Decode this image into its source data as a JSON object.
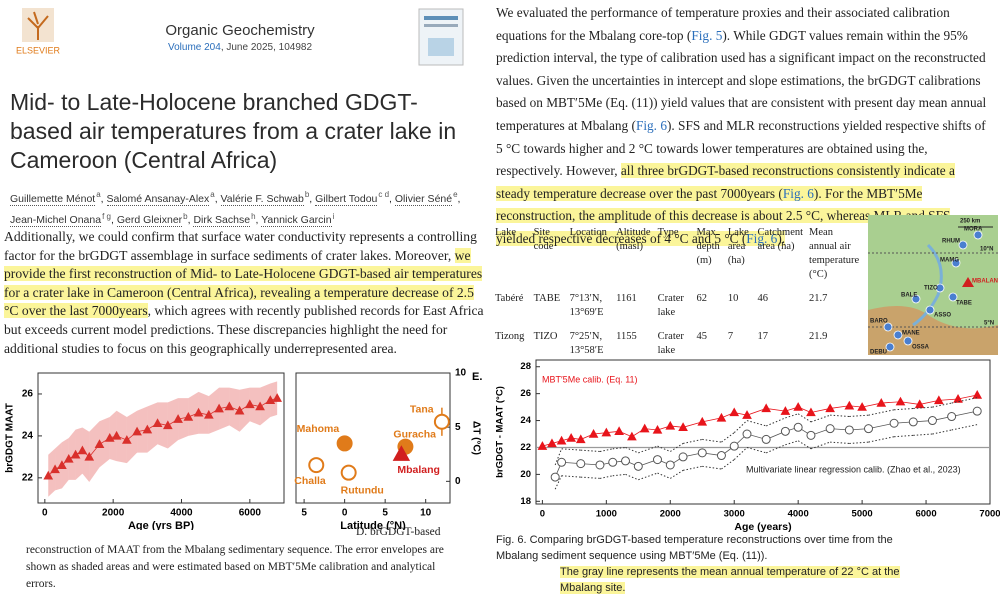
{
  "header": {
    "publisher": "ELSEVIER",
    "journal": "Organic Geochemistry",
    "volume": "Volume 204",
    "issue": ", June 2025, 104982"
  },
  "title_lines": [
    "Mid- to Late-Holocene branched GDGT-",
    "based air temperatures from a crater lake in",
    "Cameroon (Central Africa)"
  ],
  "authors": [
    {
      "name": "Guillemette Ménot",
      "aff": "a"
    },
    {
      "name": "Salomé Ansanay-Alex",
      "aff": "a"
    },
    {
      "name": "Valérie F. Schwab",
      "aff": "b"
    },
    {
      "name": "Gilbert Todou",
      "aff": "c d"
    },
    {
      "name": "Olivier Séné",
      "aff": "e"
    },
    {
      "name": "Jean-Michel Onana",
      "aff": "f g"
    },
    {
      "name": "Gerd Gleixner",
      "aff": "b"
    },
    {
      "name": "Dirk Sachse",
      "aff": "h"
    },
    {
      "name": "Yannick Garcin",
      "aff": "i"
    }
  ],
  "left_paragraph": [
    {
      "text": "Additionally, we could confirm that surface water conductivity represents a controlling factor for the brGDGT assemblage in surface sediments of crater lakes. Moreover, ",
      "style": "plain"
    },
    {
      "text": "we provide the first reconstruction of Mid- to Late-Holocene GDGT-based air temperatures for a crater lake in Cameroon (Central Africa), revealing a temperature decrease of 2.5 °C over the last 7000years",
      "style": "highlight"
    },
    {
      "text": ", which agrees with recently published records for East Africa but exceeds current model predictions. These discrepancies highlight the need for additional studies to focus on this geographically underrepresented area.",
      "style": "plain"
    }
  ],
  "left_caption": {
    "lead": "D. brGDGT-based",
    "text": "reconstruction of MAAT from the Mbalang sedimentary sequence. The error envelopes are shown as shaded areas and were estimated based on MBT′5Me calibration and analytical errors."
  },
  "right_paragraph": [
    {
      "text": "We evaluated the performance of temperature proxies and their associated calibration equations for the Mbalang core-top (",
      "style": "plain"
    },
    {
      "text": "Fig. 5",
      "style": "link"
    },
    {
      "text": "). While GDGT values remain within the 95% prediction interval, the type of calibration used has a significant impact on the reconstructed values. Given the uncertainties in intercept and slope estimations, the brGDGT calibrations based on MBT′5Me (Eq. (11)) yield values that are consistent with present day mean annual temperatures at Mbalang (",
      "style": "plain"
    },
    {
      "text": "Fig. 6",
      "style": "link"
    },
    {
      "text": "). SFS and MLR reconstructions yielded respective shifts of 5 °C towards higher and 2 °C towards lower temperatures are obtained using the, respectively. However, ",
      "style": "plain"
    },
    {
      "text": "all three brGDGT-based reconstructions consistently indicate a steady temperature decrease over the past 7000years (",
      "style": "highlight"
    },
    {
      "text": "Fig. 6",
      "style": "highlight-link"
    },
    {
      "text": "). For the MBT′5Me reconstruction, the amplitude of this decrease is about 2.5 °C, whereas MLR and SFS yielded respective decreases of 4 °C and 5 °C (",
      "style": "highlight"
    },
    {
      "text": "Fig. 6",
      "style": "highlight-link"
    },
    {
      "text": ").",
      "style": "highlight"
    }
  ],
  "table": {
    "headers": [
      "Lake",
      "Site code",
      "Location",
      "Altitude (masl)",
      "Type",
      "Max depth (m)",
      "Lake area (ha)",
      "Catchment area (ha)",
      "Mean annual air temperature (°C)"
    ],
    "rows": [
      [
        "Tabéré",
        "TABE",
        "7°13′N, 13°69′E",
        "1161",
        "Crater lake",
        "62",
        "10",
        "46",
        "21.7"
      ],
      [
        "Tizong",
        "TIZO",
        "7°25′N, 13°58′E",
        "1155",
        "Crater lake",
        "45",
        "7",
        "17",
        "21.9"
      ]
    ]
  },
  "map": {
    "labels": [
      "250 km",
      "MORA",
      "RHUM",
      "10°N",
      "MAMG",
      "MBALANG",
      "TIZO",
      "TABE",
      "BALE",
      "ASSO",
      "5°N",
      "BARO",
      "MANE",
      "DEBU",
      "OSSA"
    ]
  },
  "right_caption": {
    "text": "Fig. 6. Comparing brGDGT-based temperature reconstructions over time from the Mbalang sediment sequence using MBT′5Me (Eq. (11)).",
    "highlight": "The gray line represents the mean annual temperature of 22 °C at the Mbalang site."
  },
  "chart_data": [
    {
      "type": "scatter",
      "xlabel": "Age (yrs BP)",
      "ylabel": "brGDGT MAAT",
      "xlim": [
        -200,
        7000
      ],
      "ylim": [
        20.8,
        27
      ],
      "xticks": [
        0,
        2000,
        4000,
        6000
      ],
      "yticks": [
        22,
        24,
        26
      ],
      "series": [
        {
          "color": "#d9302c",
          "marker": "triangle",
          "fill": true,
          "line": true,
          "envelope": "shaded",
          "x": [
            100,
            300,
            500,
            700,
            900,
            1100,
            1300,
            1600,
            1900,
            2100,
            2400,
            2700,
            3000,
            3300,
            3600,
            3900,
            4200,
            4500,
            4800,
            5100,
            5400,
            5700,
            6000,
            6300,
            6600,
            6800
          ],
          "values": [
            22.1,
            22.4,
            22.6,
            22.9,
            23.1,
            23.3,
            23,
            23.6,
            23.9,
            24,
            23.8,
            24.2,
            24.3,
            24.6,
            24.5,
            24.8,
            24.9,
            25.1,
            25,
            25.3,
            25.4,
            25.2,
            25.5,
            25.4,
            25.7,
            25.8
          ],
          "errors": [
            1,
            1,
            1.1,
            1,
            1.2,
            1.1,
            1.2,
            1.1,
            1,
            1.2,
            1.1,
            1,
            1.1,
            1,
            1.1,
            1,
            0.9,
            1,
            0.9,
            1,
            0.9,
            1,
            0.8,
            0.9,
            0.8,
            0.8
          ]
        }
      ]
    },
    {
      "type": "scatter",
      "xlabel": "Latitude (°N)",
      "ylabel": "ΔT (°C)",
      "yaxis_side": "right",
      "annotation": "E.",
      "xlim": [
        -6,
        13
      ],
      "ylim": [
        -2,
        10
      ],
      "xticks": [
        {
          "value": -5,
          "label": "5"
        },
        0,
        5,
        10
      ],
      "yticks": [
        0,
        5,
        10
      ],
      "series": [
        {
          "color": "#e07b1a",
          "marker": "circle",
          "fill": true,
          "x": [
            0,
            7.5
          ],
          "values": [
            3.5,
            3.2
          ],
          "labels": [
            "Mahoma",
            "Guracha"
          ]
        },
        {
          "color": "#e07b1a",
          "marker": "circle",
          "fill": false,
          "x": [
            -3.5,
            0.5,
            12
          ],
          "values": [
            1.5,
            0.8,
            5.5
          ],
          "errors": [
            null,
            null,
            1.3
          ],
          "labels": [
            "Challa",
            "Rutundu",
            "Tana"
          ]
        },
        {
          "color": "#d11f1f",
          "marker": "triangle",
          "fill": true,
          "x": [
            7
          ],
          "values": [
            2.5
          ],
          "labels": [
            "Mbalang"
          ]
        }
      ]
    },
    {
      "type": "scatter",
      "xlabel": "Age (years)",
      "ylabel": "brGDGT - MAAT (°C)",
      "xlim": [
        -100,
        7000
      ],
      "ylim": [
        17.8,
        28.5
      ],
      "xticks": [
        0,
        1000,
        2000,
        3000,
        4000,
        5000,
        6000,
        7000
      ],
      "yticks": [
        18,
        20,
        22,
        24,
        26,
        28
      ],
      "hlines": [
        {
          "value": 22,
          "color": "#9a9a9a"
        }
      ],
      "series": [
        {
          "name": "MBT′5Me calib. (Eq. 11)",
          "color": "#e8141b",
          "marker": "triangle",
          "fill": true,
          "line": true,
          "x": [
            0,
            150,
            300,
            450,
            600,
            800,
            1000,
            1200,
            1400,
            1600,
            1800,
            2000,
            2200,
            2500,
            2800,
            3000,
            3200,
            3500,
            3800,
            4000,
            4200,
            4500,
            4800,
            5000,
            5300,
            5600,
            5900,
            6200,
            6500,
            6800
          ],
          "values": [
            22.1,
            22.3,
            22.5,
            22.7,
            22.6,
            23,
            23.1,
            23.2,
            22.8,
            23.4,
            23.3,
            23.6,
            23.5,
            23.9,
            24.2,
            24.6,
            24.4,
            24.9,
            24.7,
            25,
            24.6,
            24.9,
            25.1,
            25,
            25.3,
            25.4,
            25.2,
            25.5,
            25.6,
            25.9
          ]
        },
        {
          "name": "Multivariate linear regression calib. (Zhao et al., 2023)",
          "color": "#555555",
          "marker": "circle",
          "fill": false,
          "line": true,
          "envelope": "dotted",
          "x": [
            200,
            300,
            600,
            900,
            1100,
            1300,
            1500,
            1800,
            2000,
            2200,
            2500,
            2800,
            3000,
            3200,
            3500,
            3800,
            4000,
            4200,
            4500,
            4800,
            5100,
            5500,
            5800,
            6100,
            6400,
            6800
          ],
          "values": [
            19.8,
            20.9,
            20.8,
            20.7,
            20.9,
            21,
            20.6,
            21.1,
            20.7,
            21.3,
            21.6,
            21.4,
            22.1,
            23,
            22.6,
            23.2,
            23.5,
            22.9,
            23.4,
            23.3,
            23.4,
            23.8,
            23.9,
            24,
            24.3,
            24.7
          ],
          "errors": [
            0.9,
            1,
            1,
            1,
            1,
            1,
            1,
            1,
            1,
            1,
            1,
            1,
            1,
            1,
            1,
            1,
            1,
            1,
            1,
            1,
            1,
            1,
            1,
            1,
            1,
            1
          ]
        }
      ]
    }
  ]
}
